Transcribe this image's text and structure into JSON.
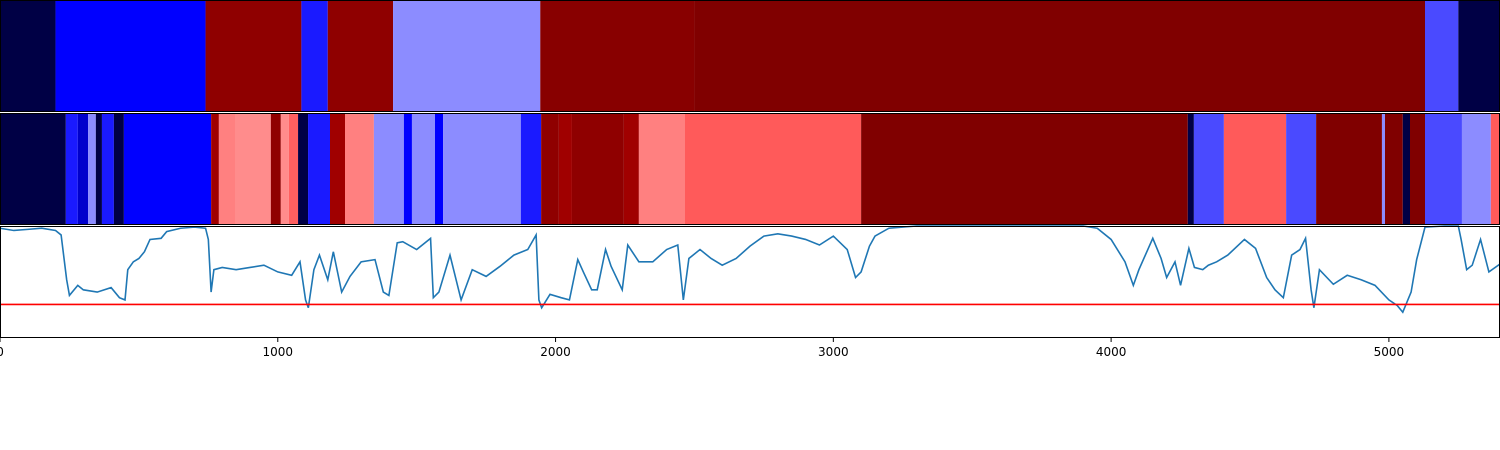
{
  "chart_data": [
    {
      "type": "segments",
      "xlim": [
        0,
        5400
      ],
      "segments": [
        {
          "start": 0,
          "end": 200,
          "color": "#000045"
        },
        {
          "start": 200,
          "end": 740,
          "color": "#0000ff"
        },
        {
          "start": 740,
          "end": 1085,
          "color": "#8f0000"
        },
        {
          "start": 1085,
          "end": 1180,
          "color": "#1a1aff"
        },
        {
          "start": 1180,
          "end": 1415,
          "color": "#8f0000"
        },
        {
          "start": 1415,
          "end": 1945,
          "color": "#8c8cff"
        },
        {
          "start": 1945,
          "end": 2500,
          "color": "#880000"
        },
        {
          "start": 2500,
          "end": 5130,
          "color": "#800000"
        },
        {
          "start": 5130,
          "end": 5250,
          "color": "#4a4aff"
        },
        {
          "start": 5250,
          "end": 5400,
          "color": "#000045"
        }
      ]
    },
    {
      "type": "segments",
      "xlim": [
        0,
        5400
      ],
      "segments": [
        {
          "start": 0,
          "end": 237,
          "color": "#000045"
        },
        {
          "start": 237,
          "end": 280,
          "color": "#1a1aff"
        },
        {
          "start": 280,
          "end": 317,
          "color": "#0000cc"
        },
        {
          "start": 317,
          "end": 345,
          "color": "#8c8cff"
        },
        {
          "start": 345,
          "end": 367,
          "color": "#000045"
        },
        {
          "start": 367,
          "end": 410,
          "color": "#1a1aff"
        },
        {
          "start": 410,
          "end": 446,
          "color": "#000045"
        },
        {
          "start": 446,
          "end": 760,
          "color": "#0000ff"
        },
        {
          "start": 760,
          "end": 788,
          "color": "#a00000"
        },
        {
          "start": 788,
          "end": 846,
          "color": "#ff8080"
        },
        {
          "start": 846,
          "end": 975,
          "color": "#ff8c8c"
        },
        {
          "start": 975,
          "end": 1011,
          "color": "#8f0000"
        },
        {
          "start": 1011,
          "end": 1040,
          "color": "#ff8c8c"
        },
        {
          "start": 1040,
          "end": 1073,
          "color": "#ff6060"
        },
        {
          "start": 1073,
          "end": 1109,
          "color": "#000045"
        },
        {
          "start": 1109,
          "end": 1188,
          "color": "#1a1aff"
        },
        {
          "start": 1188,
          "end": 1242,
          "color": "#a00000"
        },
        {
          "start": 1242,
          "end": 1346,
          "color": "#ff8080"
        },
        {
          "start": 1346,
          "end": 1454,
          "color": "#8c8cff"
        },
        {
          "start": 1454,
          "end": 1483,
          "color": "#0000ff"
        },
        {
          "start": 1483,
          "end": 1566,
          "color": "#8c8cff"
        },
        {
          "start": 1566,
          "end": 1595,
          "color": "#0000ff"
        },
        {
          "start": 1595,
          "end": 1875,
          "color": "#8c8cff"
        },
        {
          "start": 1875,
          "end": 1948,
          "color": "#1a1aff"
        },
        {
          "start": 1948,
          "end": 2012,
          "color": "#8f0000"
        },
        {
          "start": 2012,
          "end": 2059,
          "color": "#a00000"
        },
        {
          "start": 2059,
          "end": 2246,
          "color": "#8f0000"
        },
        {
          "start": 2246,
          "end": 2300,
          "color": "#a00000"
        },
        {
          "start": 2300,
          "end": 2466,
          "color": "#ff8080"
        },
        {
          "start": 2466,
          "end": 3100,
          "color": "#ff5a5a"
        },
        {
          "start": 3100,
          "end": 4276,
          "color": "#800000"
        },
        {
          "start": 4276,
          "end": 4298,
          "color": "#000045"
        },
        {
          "start": 4298,
          "end": 4406,
          "color": "#4a4aff"
        },
        {
          "start": 4406,
          "end": 4630,
          "color": "#ff5a5a"
        },
        {
          "start": 4630,
          "end": 4738,
          "color": "#4a4aff"
        },
        {
          "start": 4738,
          "end": 4975,
          "color": "#800000"
        },
        {
          "start": 4975,
          "end": 4986,
          "color": "#8c8cff"
        },
        {
          "start": 4986,
          "end": 5050,
          "color": "#800000"
        },
        {
          "start": 5050,
          "end": 5076,
          "color": "#000045"
        },
        {
          "start": 5076,
          "end": 5130,
          "color": "#800000"
        },
        {
          "start": 5130,
          "end": 5263,
          "color": "#4a4aff"
        },
        {
          "start": 5263,
          "end": 5367,
          "color": "#8c8cff"
        },
        {
          "start": 5367,
          "end": 5400,
          "color": "#ff5a5a"
        }
      ]
    },
    {
      "type": "line",
      "xlim": [
        0,
        5400
      ],
      "ylim": [
        0,
        1
      ],
      "xticks": [
        0,
        1000,
        2000,
        3000,
        4000,
        5000
      ],
      "hline": {
        "value": 0.3,
        "color": "#ff0000"
      },
      "x": [
        0,
        50,
        100,
        150,
        200,
        220,
        240,
        250,
        280,
        300,
        350,
        400,
        430,
        450,
        460,
        480,
        500,
        520,
        540,
        580,
        600,
        650,
        700,
        740,
        750,
        760,
        770,
        800,
        850,
        900,
        950,
        1000,
        1050,
        1080,
        1100,
        1110,
        1130,
        1150,
        1180,
        1200,
        1230,
        1260,
        1300,
        1350,
        1380,
        1400,
        1430,
        1450,
        1500,
        1550,
        1560,
        1580,
        1620,
        1660,
        1700,
        1750,
        1800,
        1850,
        1900,
        1930,
        1940,
        1950,
        1980,
        2020,
        2050,
        2080,
        2100,
        2130,
        2150,
        2180,
        2200,
        2240,
        2260,
        2300,
        2350,
        2400,
        2440,
        2460,
        2480,
        2520,
        2560,
        2600,
        2650,
        2700,
        2750,
        2800,
        2850,
        2900,
        2950,
        3000,
        3050,
        3080,
        3100,
        3130,
        3150,
        3200,
        3300,
        3400,
        3500,
        3600,
        3700,
        3800,
        3900,
        3950,
        4000,
        4050,
        4080,
        4100,
        4150,
        4180,
        4200,
        4230,
        4250,
        4280,
        4300,
        4330,
        4350,
        4380,
        4420,
        4480,
        4520,
        4560,
        4590,
        4620,
        4650,
        4680,
        4700,
        4720,
        4730,
        4750,
        4800,
        4850,
        4900,
        4950,
        5000,
        5030,
        5050,
        5080,
        5100,
        5130,
        5200,
        5250,
        5260,
        5280,
        5300,
        5330,
        5360,
        5400
      ],
      "series": [
        {
          "color": "#1f77b4",
          "values": [
            0.98,
            0.96,
            0.97,
            0.98,
            0.96,
            0.92,
            0.52,
            0.38,
            0.47,
            0.43,
            0.41,
            0.45,
            0.36,
            0.34,
            0.61,
            0.68,
            0.71,
            0.77,
            0.88,
            0.89,
            0.95,
            0.98,
            0.99,
            0.98,
            0.88,
            0.41,
            0.61,
            0.63,
            0.61,
            0.63,
            0.65,
            0.59,
            0.56,
            0.68,
            0.34,
            0.27,
            0.61,
            0.74,
            0.52,
            0.77,
            0.41,
            0.55,
            0.68,
            0.7,
            0.41,
            0.38,
            0.85,
            0.86,
            0.79,
            0.89,
            0.36,
            0.41,
            0.74,
            0.34,
            0.61,
            0.55,
            0.64,
            0.74,
            0.79,
            0.92,
            0.34,
            0.27,
            0.39,
            0.36,
            0.34,
            0.7,
            0.59,
            0.43,
            0.43,
            0.79,
            0.64,
            0.43,
            0.83,
            0.68,
            0.68,
            0.79,
            0.83,
            0.34,
            0.71,
            0.79,
            0.71,
            0.65,
            0.71,
            0.82,
            0.91,
            0.93,
            0.91,
            0.88,
            0.83,
            0.91,
            0.79,
            0.54,
            0.59,
            0.82,
            0.91,
            0.98,
            1.0,
            1.0,
            1.0,
            1.0,
            1.0,
            1.0,
            1.0,
            0.98,
            0.88,
            0.68,
            0.47,
            0.61,
            0.89,
            0.71,
            0.54,
            0.68,
            0.47,
            0.8,
            0.63,
            0.61,
            0.65,
            0.68,
            0.74,
            0.88,
            0.8,
            0.54,
            0.43,
            0.36,
            0.74,
            0.79,
            0.89,
            0.43,
            0.27,
            0.61,
            0.48,
            0.56,
            0.52,
            0.47,
            0.34,
            0.29,
            0.23,
            0.41,
            0.7,
            0.99,
            1.0,
            1.0,
            0.88,
            0.61,
            0.65,
            0.88,
            0.59,
            0.66
          ]
        }
      ]
    }
  ]
}
